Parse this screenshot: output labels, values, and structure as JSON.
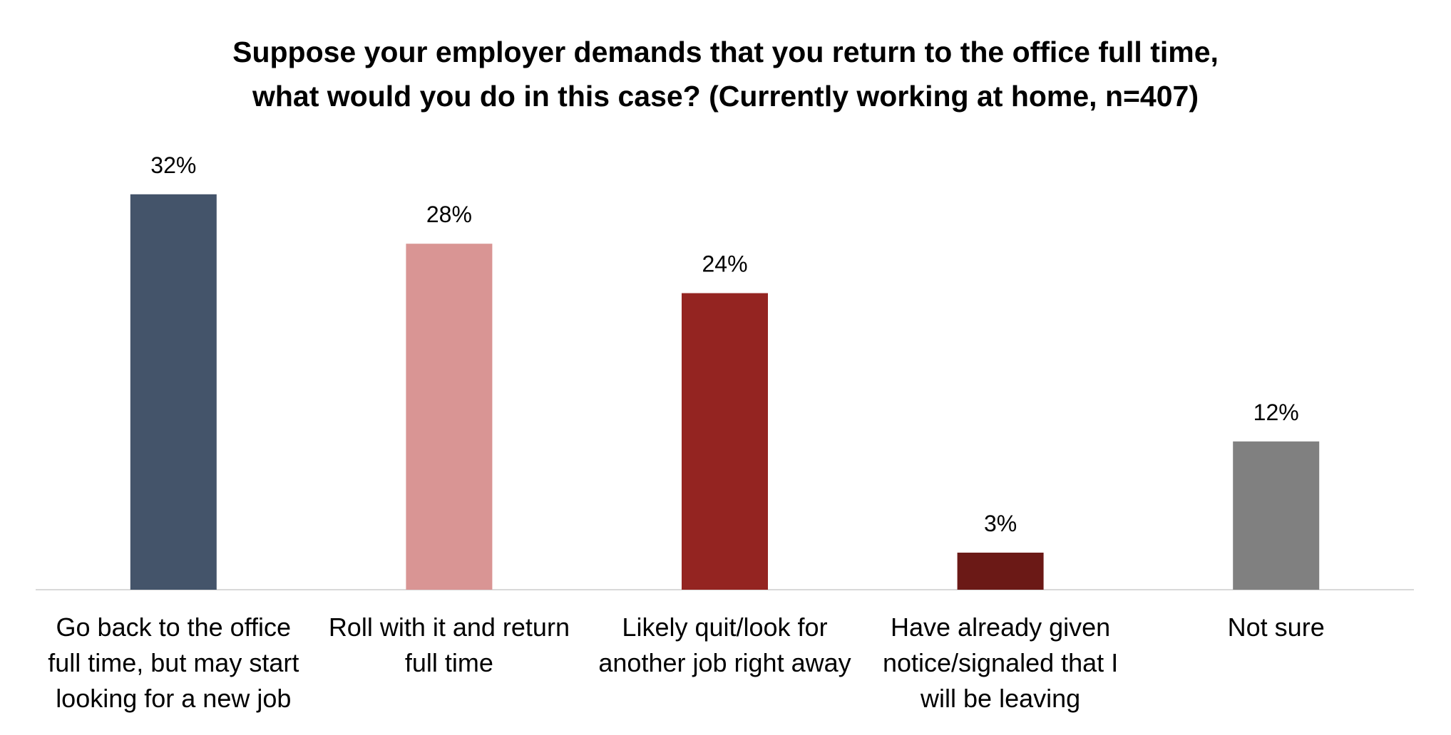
{
  "chart_data": {
    "type": "bar",
    "title_lines": [
      "Suppose your employer demands that you return to the office full time,",
      "what would you do in this case? (Currently working at home, n=407)"
    ],
    "categories": [
      [
        "Go back to the office",
        "full time, but may start",
        "looking for a new job"
      ],
      [
        "Roll with it and return",
        "full time"
      ],
      [
        "Likely quit/look for",
        "another job right away"
      ],
      [
        "Have already given",
        "notice/signaled that I",
        "will be leaving"
      ],
      [
        "Not sure"
      ]
    ],
    "values": [
      32,
      28,
      24,
      3,
      12
    ],
    "value_labels": [
      "32%",
      "28%",
      "24%",
      "3%",
      "12%"
    ],
    "unit": "%",
    "colors": [
      "#44546a",
      "#d99594",
      "#942421",
      "#6b1916",
      "#808080"
    ],
    "ylim": [
      0,
      35
    ],
    "grid": false,
    "legend": "none",
    "axis_color": "#d9d9d9"
  }
}
